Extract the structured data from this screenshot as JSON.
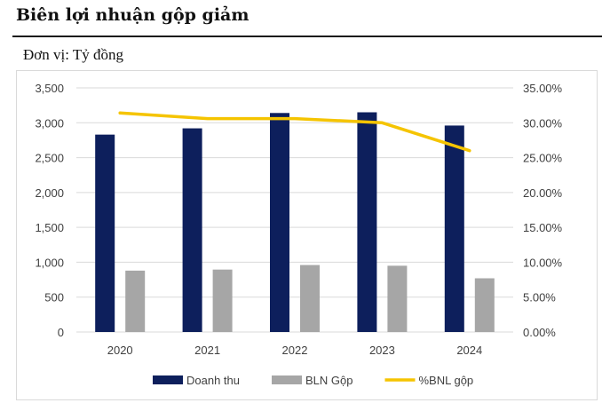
{
  "header": {
    "title": "Biên lợi nhuận gộp giảm",
    "unit_label": "Đơn vị: Tỷ đồng"
  },
  "chart_data": {
    "type": "bar",
    "categories": [
      "2020",
      "2021",
      "2022",
      "2023",
      "2024"
    ],
    "series": [
      {
        "name": "Doanh thu",
        "kind": "bar",
        "axis": "left",
        "color": "#0d1f5c",
        "values": [
          2830,
          2920,
          3140,
          3150,
          2960
        ]
      },
      {
        "name": "BLN Gộp",
        "kind": "bar",
        "axis": "left",
        "color": "#a6a6a6",
        "values": [
          880,
          895,
          960,
          950,
          770
        ]
      },
      {
        "name": "%BNL gộp",
        "kind": "line",
        "axis": "right",
        "color": "#f5c400",
        "values": [
          0.314,
          0.306,
          0.306,
          0.3,
          0.26
        ]
      }
    ],
    "y_left": {
      "min": 0,
      "max": 3500,
      "ticks": [
        "0",
        "500",
        "1,000",
        "1,500",
        "2,000",
        "2,500",
        "3,000",
        "3,500"
      ]
    },
    "y_right": {
      "min": 0,
      "max": 0.35,
      "ticks": [
        "0.00%",
        "5.00%",
        "10.00%",
        "15.00%",
        "20.00%",
        "25.00%",
        "30.00%",
        "35.00%"
      ]
    },
    "grid": true,
    "legend": "bottom"
  }
}
